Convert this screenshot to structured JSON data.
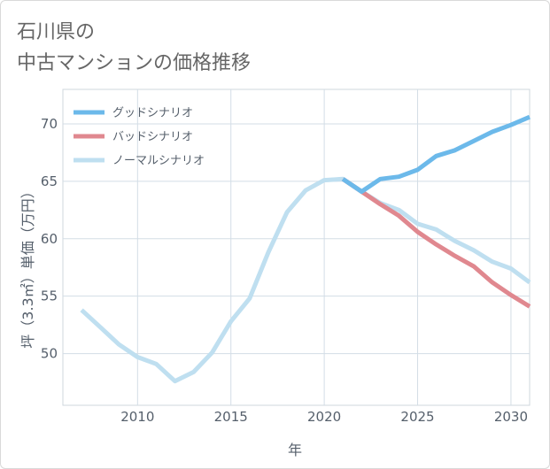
{
  "title_lines": [
    "石川県の",
    "中古マンションの価格推移"
  ],
  "chart_data": {
    "type": "line",
    "xlabel": "年",
    "ylabel": "坪（3.3㎡）単価（万円）",
    "xlim": [
      2006,
      2031
    ],
    "ylim": [
      45.5,
      73
    ],
    "xticks": [
      2010,
      2015,
      2020,
      2025,
      2030
    ],
    "yticks": [
      50,
      55,
      60,
      65,
      70
    ],
    "grid": true,
    "legend_position": "top-left",
    "series": [
      {
        "name": "グッドシナリオ",
        "color": "#6cb9ea",
        "x": [
          2021,
          2022,
          2023,
          2024,
          2025,
          2026,
          2027,
          2028,
          2029,
          2030,
          2031
        ],
        "y": [
          65.2,
          64.1,
          65.2,
          65.4,
          66.0,
          67.2,
          67.7,
          68.5,
          69.3,
          69.9,
          70.6
        ]
      },
      {
        "name": "バッドシナリオ",
        "color": "#e0888f",
        "x": [
          2021,
          2022,
          2023,
          2024,
          2025,
          2026,
          2027,
          2028,
          2029,
          2030,
          2031
        ],
        "y": [
          65.2,
          64.1,
          63.0,
          62.0,
          60.6,
          59.5,
          58.5,
          57.6,
          56.2,
          55.1,
          54.1
        ]
      },
      {
        "name": "ノーマルシナリオ",
        "color": "#bfdff0",
        "x": [
          2007,
          2008,
          2009,
          2010,
          2011,
          2012,
          2013,
          2014,
          2015,
          2016,
          2017,
          2018,
          2019,
          2020,
          2021,
          2022,
          2023,
          2024,
          2025,
          2026,
          2027,
          2028,
          2029,
          2030,
          2031
        ],
        "y": [
          53.8,
          52.3,
          50.8,
          49.7,
          49.1,
          47.6,
          48.4,
          50.1,
          52.8,
          54.8,
          58.8,
          62.3,
          64.2,
          65.1,
          65.2,
          64.1,
          63.1,
          62.5,
          61.3,
          60.8,
          59.8,
          59.0,
          58.0,
          57.4,
          56.2
        ]
      }
    ]
  }
}
